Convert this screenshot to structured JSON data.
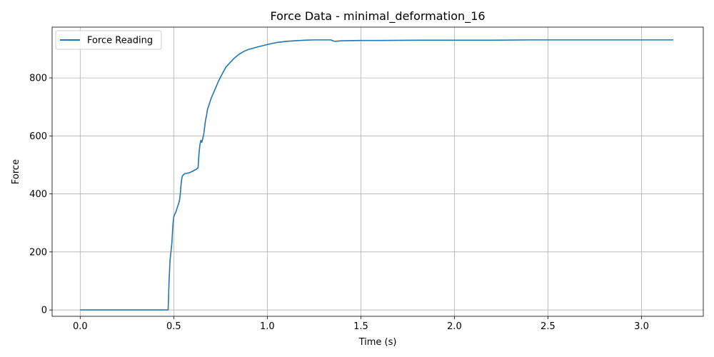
{
  "chart_data": {
    "type": "line",
    "title": "Force Data - minimal_deformation_16",
    "xlabel": "Time (s)",
    "ylabel": "Force",
    "xlim": [
      -0.15,
      3.33
    ],
    "ylim": [
      -22,
      975
    ],
    "xticks": [
      0.0,
      0.5,
      1.0,
      1.5,
      2.0,
      2.5,
      3.0
    ],
    "xtick_labels": [
      "0.0",
      "0.5",
      "1.0",
      "1.5",
      "2.0",
      "2.5",
      "3.0"
    ],
    "yticks": [
      0,
      200,
      400,
      600,
      800
    ],
    "ytick_labels": [
      "0",
      "200",
      "400",
      "600",
      "800"
    ],
    "grid": true,
    "legend_position": "upper-left",
    "series": [
      {
        "name": "Force Reading",
        "color": "#1f77b4",
        "x": [
          0.0,
          0.1,
          0.2,
          0.3,
          0.4,
          0.47,
          0.472,
          0.475,
          0.48,
          0.49,
          0.495,
          0.5,
          0.505,
          0.51,
          0.52,
          0.53,
          0.535,
          0.54,
          0.545,
          0.55,
          0.56,
          0.58,
          0.6,
          0.62,
          0.63,
          0.635,
          0.64,
          0.645,
          0.65,
          0.655,
          0.66,
          0.665,
          0.67,
          0.675,
          0.68,
          0.69,
          0.7,
          0.72,
          0.74,
          0.76,
          0.78,
          0.8,
          0.82,
          0.85,
          0.88,
          0.9,
          0.95,
          1.0,
          1.05,
          1.1,
          1.15,
          1.2,
          1.25,
          1.3,
          1.34,
          1.35,
          1.36,
          1.4,
          1.5,
          1.6,
          1.8,
          2.0,
          2.2,
          2.4,
          2.6,
          2.8,
          3.0,
          3.1,
          3.17
        ],
        "y": [
          0,
          0,
          0,
          0,
          0,
          0,
          40,
          100,
          170,
          230,
          290,
          320,
          330,
          335,
          355,
          375,
          400,
          440,
          460,
          465,
          470,
          472,
          478,
          485,
          490,
          540,
          570,
          585,
          578,
          590,
          605,
          630,
          655,
          670,
          690,
          710,
          730,
          760,
          790,
          815,
          838,
          852,
          866,
          882,
          893,
          898,
          907,
          915,
          922,
          926,
          928,
          930,
          931,
          931,
          931,
          928,
          926,
          928,
          929,
          929,
          930,
          930,
          930,
          931,
          931,
          931,
          931,
          931,
          931
        ]
      }
    ]
  }
}
